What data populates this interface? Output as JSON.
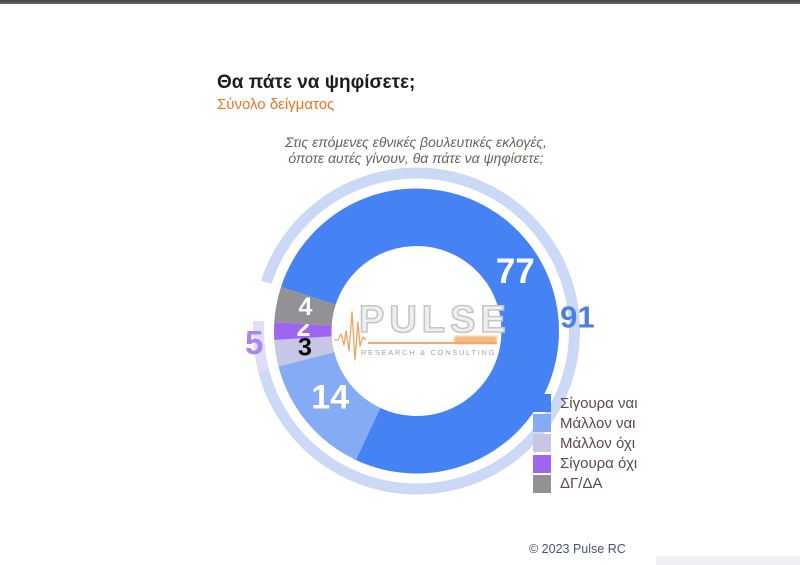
{
  "page": {
    "title": "Θα πάτε να ψηφίσετε;",
    "subtitle": "Σύνολο δείγματος",
    "footer": "© 2023 Pulse RC"
  },
  "question": {
    "line1": "Στις επόμενες εθνικές βουλευτικές εκλογές,",
    "line2": "όποτε αυτές γίνουν, θα πάτε να ψηφίσετε;"
  },
  "logo": {
    "wordmark": "PULSE",
    "tagline": "RESEARCH & CONSULTING",
    "accent_color": "#f0a35e"
  },
  "chart_data": {
    "type": "donut",
    "title": "Στις επόμενες εθνικές βουλευτικές εκλογές, όποτε αυτές γίνουν, θα πάτε να ψηφίσετε;",
    "units": "percent",
    "start_angle_deg": 288,
    "clockwise": true,
    "legend_position": "bottom-right",
    "inner_ring": {
      "description": "detailed answers",
      "segments": [
        {
          "label": "Σίγουρα ναι",
          "value": 77,
          "color": "#4583f5",
          "value_label_color": "#ffffff"
        },
        {
          "label": "Μάλλον ναι",
          "value": 14,
          "color": "#84abf3",
          "value_label_color": "#ffffff"
        },
        {
          "label": "Μάλλον όχι",
          "value": 3,
          "color": "#c6c6e5",
          "value_label_color": "#0a0a0a"
        },
        {
          "label": "Σίγουρα όχι",
          "value": 2,
          "color": "#9e66f0",
          "value_label_color": "#ffffff"
        },
        {
          "label": "ΔΓ/ΔΑ",
          "value": 4,
          "color": "#919196",
          "value_label_color": "#ffffff"
        }
      ]
    },
    "outer_ring": {
      "description": "grouped totals (yes / no), gap over ΔΓ/ΔΑ",
      "segments": [
        {
          "value": 91,
          "color": "#ccd9f6",
          "value_label_color": "#4c7fe3"
        },
        {
          "value": 5,
          "color": "#e3dcf7",
          "value_label_color": "#aa85f2"
        },
        {
          "value": 4,
          "color": null,
          "value_label_color": null
        }
      ]
    }
  }
}
